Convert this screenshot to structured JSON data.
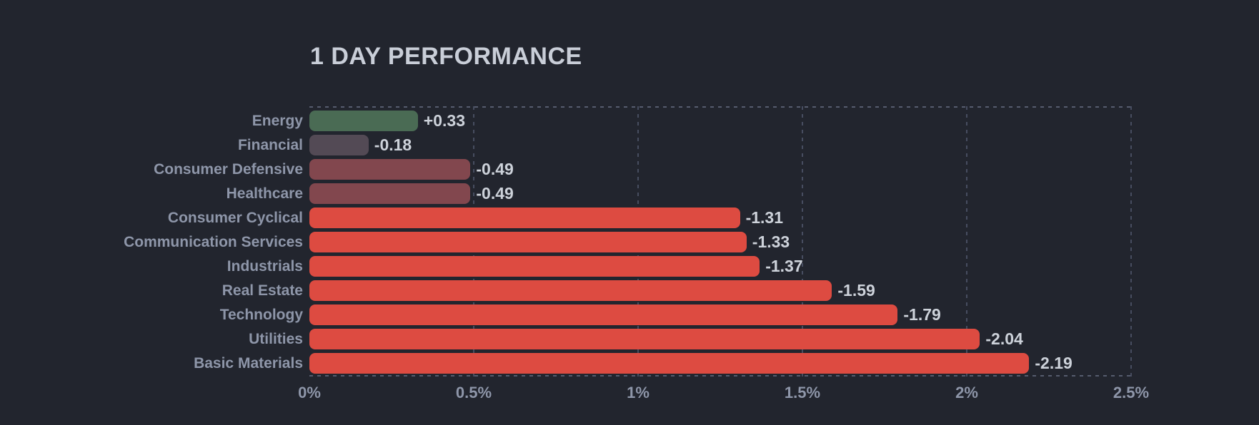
{
  "title": "1 DAY PERFORMANCE",
  "colors": {
    "background": "#22252e",
    "title_text": "#c9ced8",
    "category_label": "#8e96a9",
    "value_label": "#cdd2da",
    "axis_label": "#8e96a9",
    "gridline": "#474d60",
    "plot_border": "#565c6e"
  },
  "chart_data": {
    "type": "bar",
    "orientation": "horizontal",
    "title": "1 DAY PERFORMANCE",
    "categories": [
      "Energy",
      "Financial",
      "Consumer Defensive",
      "Healthcare",
      "Consumer Cyclical",
      "Communication Services",
      "Industrials",
      "Real Estate",
      "Technology",
      "Utilities",
      "Basic Materials"
    ],
    "values": [
      0.33,
      -0.18,
      -0.49,
      -0.49,
      -1.31,
      -1.33,
      -1.37,
      -1.59,
      -1.79,
      -2.04,
      -2.19
    ],
    "value_labels": [
      "+0.33",
      "-0.18",
      "-0.49",
      "-0.49",
      "-1.31",
      "-1.33",
      "-1.37",
      "-1.59",
      "-1.79",
      "-2.04",
      "-2.19"
    ],
    "bar_colors": [
      "#4a6b54",
      "#534a55",
      "#82474e",
      "#82474e",
      "#dd4b41",
      "#dd4b41",
      "#dd4b41",
      "#dd4b41",
      "#dd4b41",
      "#dd4b41",
      "#dd4b41"
    ],
    "bars_sized_by": "absolute value of percent change",
    "x_ticks": [
      "0%",
      "0.5%",
      "1%",
      "1.5%",
      "2%",
      "2.5%"
    ],
    "x_tick_values": [
      0,
      0.5,
      1,
      1.5,
      2,
      2.5
    ],
    "xlim": [
      0,
      2.5
    ],
    "grid": "vertical dashed lines at each 0.5% tick, dashed top and bottom plot borders",
    "legend": "none"
  }
}
